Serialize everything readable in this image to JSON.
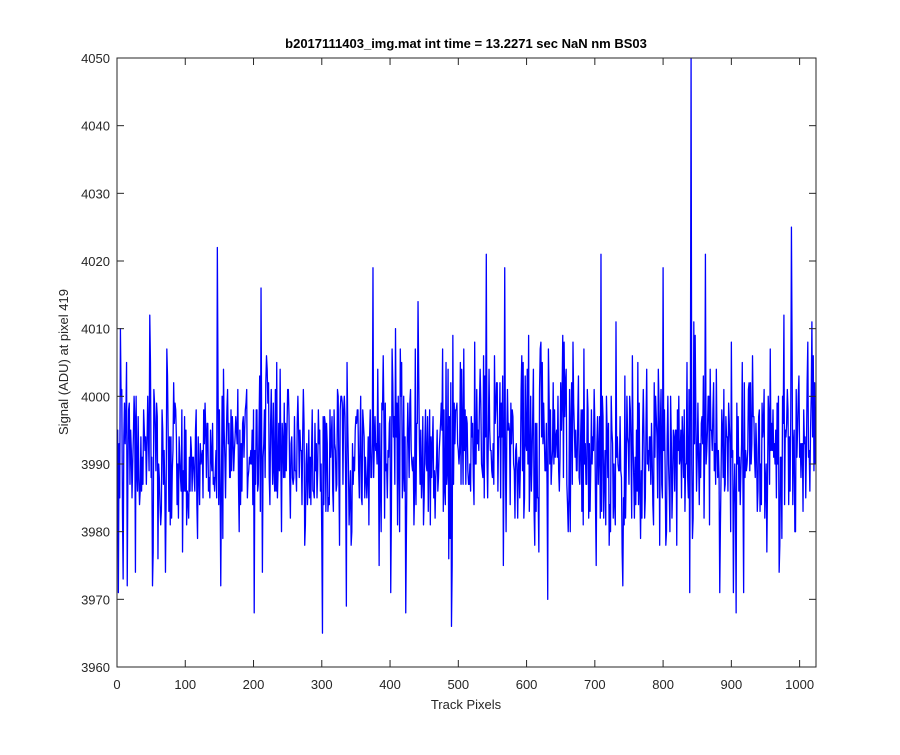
{
  "window": {
    "title": ""
  },
  "chart_data": {
    "type": "line",
    "title": "b2017111403_img.mat int time = 13.2271 sec  NaN nm BS03",
    "xlabel": "Track Pixels",
    "ylabel": "Signal (ADU) at pixel 419",
    "xlim": [
      0,
      1024
    ],
    "ylim": [
      3960,
      4050
    ],
    "xticks": [
      0,
      100,
      200,
      300,
      400,
      500,
      600,
      700,
      800,
      900,
      1000
    ],
    "yticks": [
      3960,
      3970,
      3980,
      3990,
      4000,
      4010,
      4020,
      4030,
      4040,
      4050
    ],
    "grid": false,
    "legend": "none",
    "series": [
      {
        "color": "#0000ff",
        "noise_seed": 419,
        "baseline_y": 3992,
        "n_points": 1024,
        "x_start": 0,
        "values_note": "",
        "key_points": [
          {
            "x": 0,
            "y": 3988
          },
          {
            "x": 5,
            "y": 4010
          },
          {
            "x": 9,
            "y": 3973
          },
          {
            "x": 15,
            "y": 3972
          },
          {
            "x": 48,
            "y": 4012
          },
          {
            "x": 52,
            "y": 3972
          },
          {
            "x": 147,
            "y": 4022
          },
          {
            "x": 201,
            "y": 3968
          },
          {
            "x": 301,
            "y": 3965
          },
          {
            "x": 336,
            "y": 3969
          },
          {
            "x": 375,
            "y": 4019
          },
          {
            "x": 423,
            "y": 3968
          },
          {
            "x": 490,
            "y": 3966
          },
          {
            "x": 541,
            "y": 4021
          },
          {
            "x": 568,
            "y": 4019
          },
          {
            "x": 631,
            "y": 3970
          },
          {
            "x": 709,
            "y": 4021
          },
          {
            "x": 800,
            "y": 4019
          },
          {
            "x": 804,
            "y": 3978
          },
          {
            "x": 841,
            "y": 4050
          },
          {
            "x": 862,
            "y": 4021
          },
          {
            "x": 907,
            "y": 3968
          },
          {
            "x": 988,
            "y": 4025
          },
          {
            "x": 1018,
            "y": 4011
          }
        ]
      }
    ]
  }
}
